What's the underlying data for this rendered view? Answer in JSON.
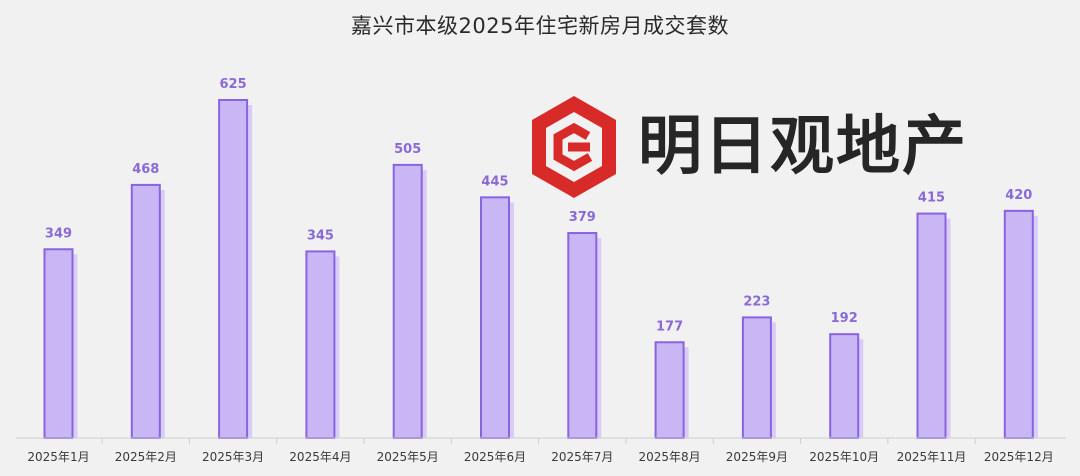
{
  "chart_data": {
    "type": "bar",
    "title": "嘉兴市本级2025年住宅新房月成交套数",
    "categories": [
      "2025年1月",
      "2025年2月",
      "2025年3月",
      "2025年4月",
      "2025年5月",
      "2025年6月",
      "2025年7月",
      "2025年8月",
      "2025年9月",
      "2025年10月",
      "2025年11月",
      "2025年12月"
    ],
    "values": [
      349,
      468,
      625,
      345,
      505,
      445,
      379,
      177,
      223,
      192,
      415,
      420
    ],
    "ylim": [
      0,
      660
    ],
    "xlabel": "",
    "ylabel": "",
    "grid": false,
    "colors": {
      "bar_fill": "#c9b6f5",
      "bar_border": "#8a63e0",
      "bar_shadow": "#d9ccf7",
      "label": "#8a6ad6"
    }
  },
  "watermark": {
    "text": "明日观地产",
    "icon": "brand-hexagon-icon",
    "colors": {
      "icon": "#d92a2a",
      "text": "#262626"
    }
  }
}
